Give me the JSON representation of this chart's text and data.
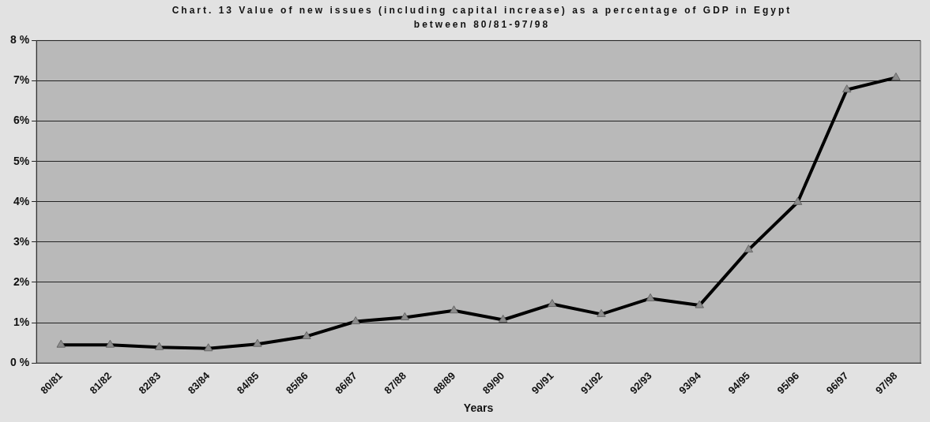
{
  "chart_data": {
    "type": "line",
    "title": "Chart. 13 Value of new issues (including capital increase) as a percentage of GDP in Egypt between 80/81-97/98",
    "xlabel": "Years",
    "categories": [
      "80/81",
      "81/82",
      "82/83",
      "83/84",
      "84/85",
      "85/86",
      "86/87",
      "87/88",
      "88/89",
      "89/90",
      "90/91",
      "91/92",
      "92/93",
      "93/94",
      "94/95",
      "95/96",
      "96/97",
      "97/98"
    ],
    "series": [
      {
        "color": "#000000",
        "values": [
          0.45,
          0.45,
          0.39,
          0.36,
          0.47,
          0.66,
          1.03,
          1.13,
          1.3,
          1.07,
          1.46,
          1.21,
          1.6,
          1.43,
          2.81,
          3.99,
          6.78,
          7.08
        ]
      }
    ],
    "ylim": [
      0,
      8
    ],
    "yticks": [
      {
        "value": 0,
        "label": "0 %"
      },
      {
        "value": 1,
        "label": "1%"
      },
      {
        "value": 2,
        "label": "2%"
      },
      {
        "value": 3,
        "label": "3%"
      },
      {
        "value": 4,
        "label": "4%"
      },
      {
        "value": 5,
        "label": "5%"
      },
      {
        "value": 6,
        "label": "6%"
      },
      {
        "value": 7,
        "label": "7%"
      },
      {
        "value": 8,
        "label": "8 %"
      }
    ],
    "grid": "y",
    "legend": false,
    "marker": "triangle",
    "line_style": "solid"
  }
}
